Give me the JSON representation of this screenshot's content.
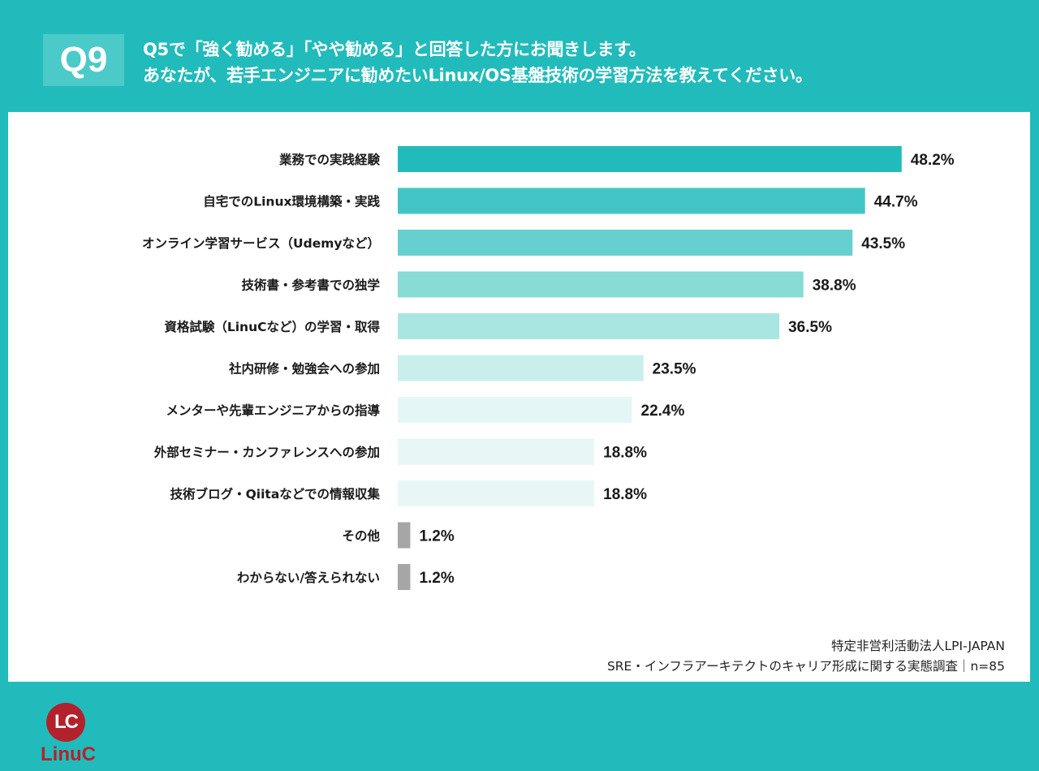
{
  "header": {
    "badge": "Q9",
    "question_line1": "Q5で「強く勧める」「やや勧める」と回答した方にお聞きします。",
    "question_line2": "あなたが、若手エンジニアに勧めたいLinux/OS基盤技術の学習方法を教えてください。"
  },
  "colors": {
    "background": "#22bbbb",
    "panel": "#ffffff",
    "other": "#a6a6a6"
  },
  "chart_data": {
    "type": "bar",
    "orientation": "horizontal",
    "title": "Q9 あなたが、若手エンジニアに勧めたいLinux/OS基盤技術の学習方法を教えてください。",
    "xlabel": "",
    "ylabel": "",
    "unit": "%",
    "xlim": [
      0,
      50
    ],
    "grid": false,
    "legend": "none",
    "categories": [
      "業務での実践経験",
      "自宅でのLinux環境構築・実践",
      "オンライン学習サービス（Udemyなど）",
      "技術書・参考書での独学",
      "資格試験（LinuCなど）の学習・取得",
      "社内研修・勉強会への参加",
      "メンターや先輩エンジニアからの指導",
      "外部セミナー・カンファレンスへの参加",
      "技術ブログ・Qiitaなどでの情報収集",
      "その他",
      "わからない/答えられない"
    ],
    "values": [
      48.2,
      44.7,
      43.5,
      38.8,
      36.5,
      23.5,
      22.4,
      18.8,
      18.8,
      1.2,
      1.2
    ],
    "value_labels": [
      "48.2%",
      "44.7%",
      "43.5%",
      "38.8%",
      "36.5%",
      "23.5%",
      "22.4%",
      "18.8%",
      "18.8%",
      "1.2%",
      "1.2%"
    ],
    "bar_colors": [
      "#22bbbb",
      "#44c5c5",
      "#66cfcf",
      "#88dbd6",
      "#aae6e1",
      "#c9efec",
      "#e4f6f5",
      "#e8f7f6",
      "#e8f7f6",
      "#a6a6a6",
      "#a6a6a6"
    ]
  },
  "logo": {
    "mark": "LC",
    "name": "LinuC"
  },
  "footer": {
    "line1": "特定非営利活動法人LPI-JAPAN",
    "line2": "SRE・インフラアーキテクトのキャリア形成に関する実態調査｜n=85"
  }
}
